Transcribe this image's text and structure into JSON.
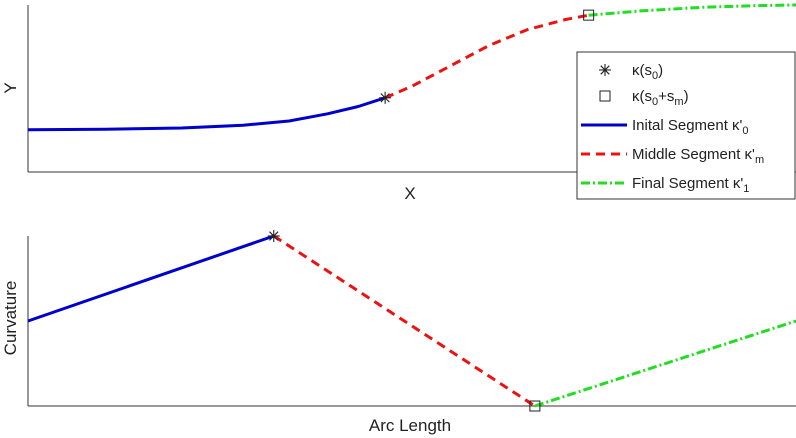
{
  "chart_data": [
    {
      "type": "line",
      "xlabel": "X",
      "ylabel": "Y",
      "ticks_shown": false,
      "grid": false,
      "legend": {
        "placement": "right",
        "entries": [
          {
            "symbol": "star",
            "text": "κ(s",
            "sub": "0",
            "after": ")"
          },
          {
            "symbol": "square",
            "text": "κ(s",
            "sub": "0",
            "mid": "+s",
            "sub2": "m",
            "after": ")"
          },
          {
            "symbol": "solid-line",
            "text": "Inital Segment κ'",
            "sub": "0",
            "color": "#0000cc"
          },
          {
            "symbol": "dashed-line",
            "text": "Middle Segment κ'",
            "sub": "m",
            "color": "#ee1111"
          },
          {
            "symbol": "dashdot-line",
            "text": "Final Segment κ'",
            "sub": "1",
            "color": "#22dd22"
          }
        ]
      },
      "series": [
        {
          "style": "solid",
          "color": "#0000cc",
          "points": [
            [
              0,
              0.14
            ],
            [
              0.1,
              0.143
            ],
            [
              0.2,
              0.152
            ],
            [
              0.28,
              0.17
            ],
            [
              0.34,
              0.2
            ],
            [
              0.39,
              0.25
            ],
            [
              0.43,
              0.3
            ],
            [
              0.465,
              0.36
            ]
          ]
        },
        {
          "style": "dashed",
          "color": "#ee1111",
          "points": [
            [
              0.465,
              0.36
            ],
            [
              0.5,
              0.44
            ],
            [
              0.55,
              0.58
            ],
            [
              0.6,
              0.72
            ],
            [
              0.65,
              0.83
            ],
            [
              0.7,
              0.9
            ],
            [
              0.73,
              0.93
            ]
          ]
        },
        {
          "style": "dashdot",
          "color": "#22dd22",
          "points": [
            [
              0.73,
              0.93
            ],
            [
              0.8,
              0.96
            ],
            [
              0.88,
              0.985
            ],
            [
              0.95,
              0.996
            ],
            [
              1.0,
              1.0
            ]
          ]
        }
      ],
      "markers": [
        {
          "type": "star",
          "x": 0.465,
          "y": 0.36
        },
        {
          "type": "square",
          "x": 0.73,
          "y": 0.93
        }
      ]
    },
    {
      "type": "line",
      "xlabel": "Arc Length",
      "ylabel": "Curvature",
      "ticks_shown": false,
      "grid": false,
      "series": [
        {
          "style": "solid",
          "color": "#0000cc",
          "points": [
            [
              0,
              0.5
            ],
            [
              0.32,
              1.0
            ]
          ]
        },
        {
          "style": "dashed",
          "color": "#ee1111",
          "points": [
            [
              0.32,
              1.0
            ],
            [
              0.66,
              0.0
            ]
          ]
        },
        {
          "style": "dashdot",
          "color": "#22dd22",
          "points": [
            [
              0.66,
              0.0
            ],
            [
              1.0,
              0.5
            ]
          ]
        }
      ],
      "markers": [
        {
          "type": "star",
          "x": 0.32,
          "y": 1.0
        },
        {
          "type": "square",
          "x": 0.66,
          "y": 0.0
        }
      ]
    }
  ]
}
